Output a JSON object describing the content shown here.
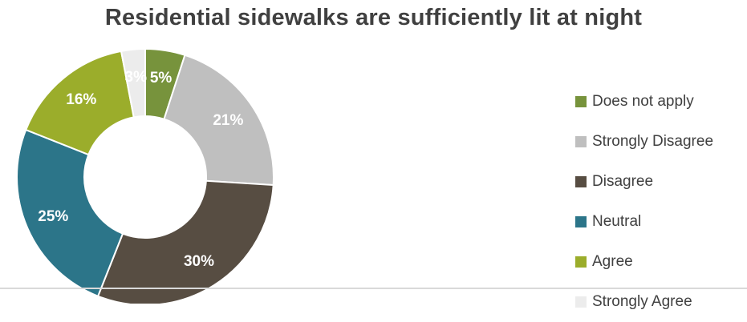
{
  "chart_data": {
    "type": "pie",
    "donut": true,
    "title": "Residential sidewalks are sufficiently lit at night",
    "categories": [
      "Does not apply",
      "Strongly Disagree",
      "Disagree",
      "Neutral",
      "Agree",
      "Strongly Agree"
    ],
    "values": [
      5,
      21,
      30,
      25,
      16,
      3
    ],
    "labels": [
      "5%",
      "21%",
      "30%",
      "25%",
      "16%",
      "3%"
    ],
    "colors": [
      "#77933c",
      "#bfbfbf",
      "#574d42",
      "#2c7589",
      "#9bad2b",
      "#ececec"
    ],
    "legend_position": "right"
  }
}
